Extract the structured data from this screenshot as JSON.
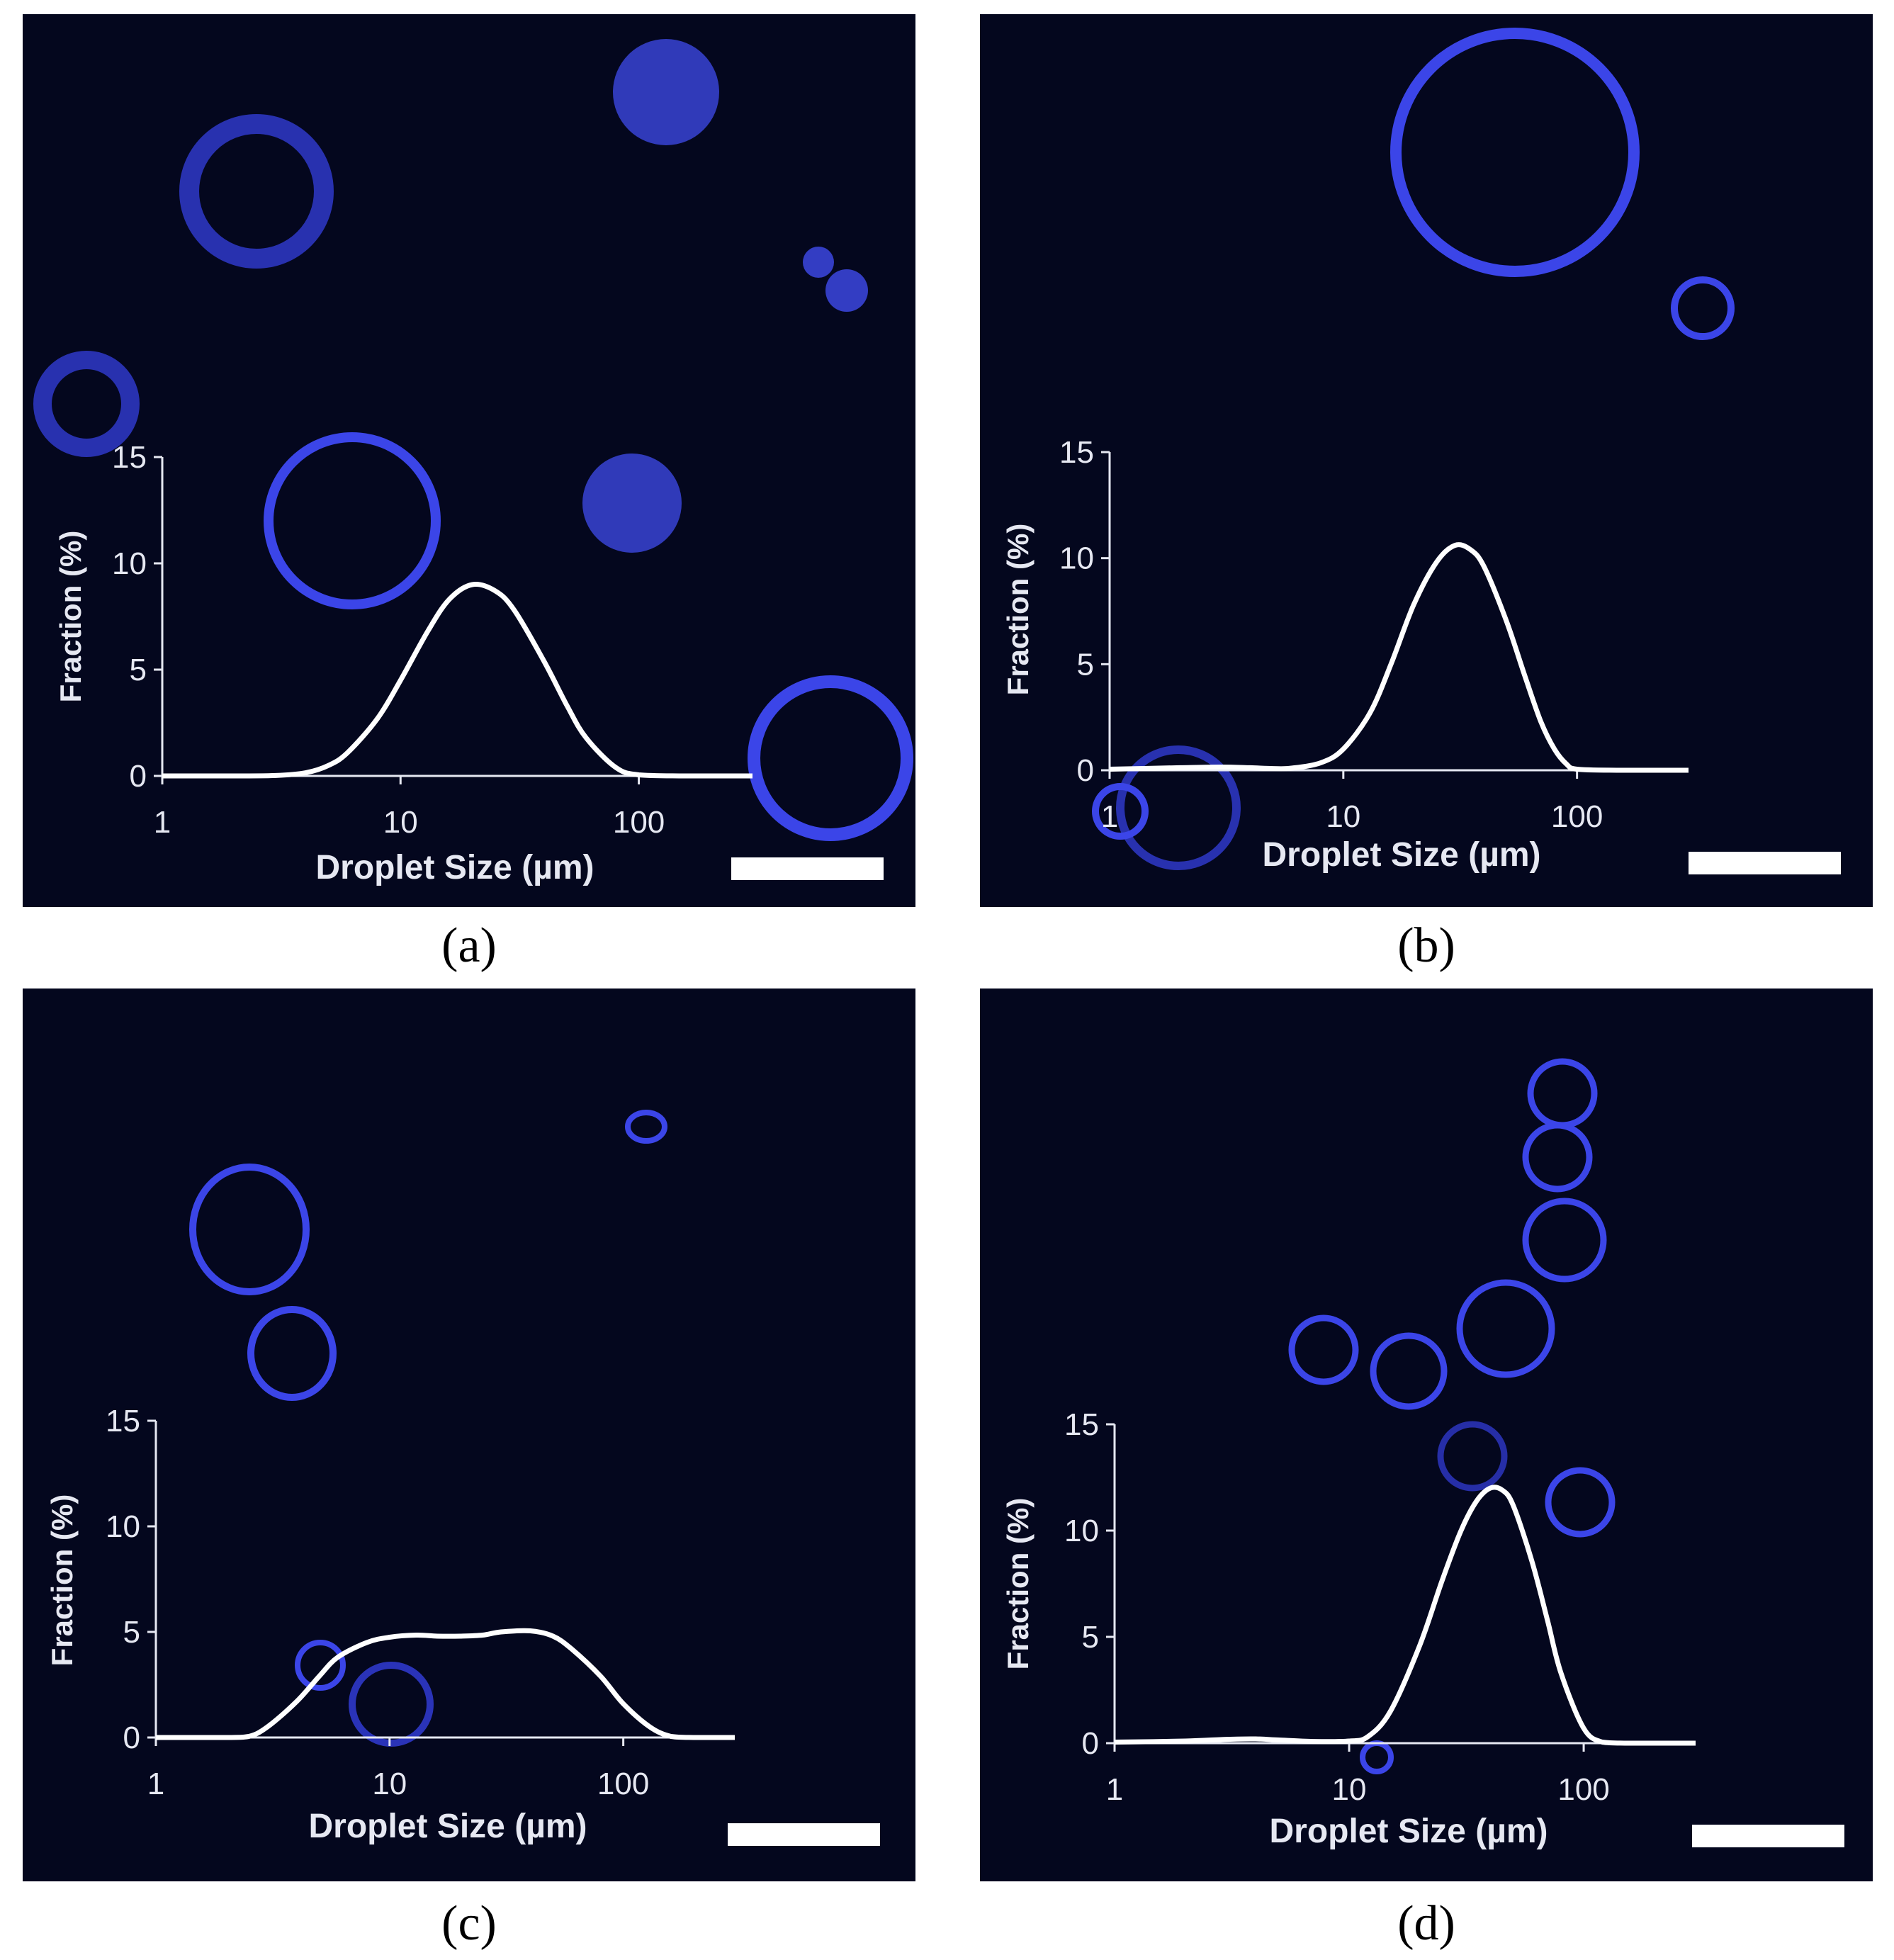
{
  "figure": {
    "captions": [
      "(a)",
      "(b)",
      "(c)",
      "(d)"
    ],
    "scale_bar_color": "#ffffff",
    "background_color": "#04071e",
    "droplet_color": "#3b45e8",
    "curve_color": "#ffffff"
  },
  "chart_data": [
    {
      "panel": "a",
      "type": "line",
      "xlabel": "Droplet Size (µm)",
      "ylabel": "Fraction (%)",
      "x_scale": "log",
      "xlim": [
        1,
        300
      ],
      "ylim": [
        0,
        15
      ],
      "x_ticks": [
        "1",
        "10",
        "100"
      ],
      "y_ticks": [
        "0",
        "5",
        "10",
        "15"
      ],
      "grid": false,
      "series": [
        {
          "x": [
            1,
            2,
            3,
            4,
            5,
            6,
            8,
            10,
            13,
            16,
            20,
            25,
            30,
            40,
            50,
            60,
            80,
            100,
            150,
            200,
            300
          ],
          "values": [
            0,
            0,
            0.02,
            0.15,
            0.5,
            1.1,
            2.7,
            4.5,
            6.8,
            8.3,
            9.0,
            8.7,
            7.8,
            5.4,
            3.3,
            1.8,
            0.4,
            0.05,
            0,
            0,
            0
          ]
        }
      ]
    },
    {
      "panel": "b",
      "type": "line",
      "xlabel": "Droplet Size (µm)",
      "ylabel": "Fraction (%)",
      "x_scale": "log",
      "xlim": [
        1,
        300
      ],
      "ylim": [
        0,
        15
      ],
      "x_ticks": [
        "1",
        "10",
        "100"
      ],
      "y_ticks": [
        "0",
        "5",
        "10",
        "15"
      ],
      "grid": false,
      "series": [
        {
          "x": [
            1,
            2,
            3,
            4,
            5,
            6,
            8,
            10,
            13,
            16,
            20,
            25,
            30,
            35,
            40,
            50,
            60,
            70,
            80,
            90,
            100,
            150,
            200,
            300
          ],
          "values": [
            0.05,
            0.12,
            0.15,
            0.12,
            0.08,
            0.1,
            0.35,
            1.0,
            2.7,
            5.0,
            7.8,
            9.8,
            10.6,
            10.4,
            9.6,
            7.0,
            4.4,
            2.3,
            1.0,
            0.3,
            0.05,
            0,
            0,
            0
          ]
        }
      ]
    },
    {
      "panel": "c",
      "type": "line",
      "xlabel": "Droplet Size (µm)",
      "ylabel": "Fraction (%)",
      "x_scale": "log",
      "xlim": [
        1,
        300
      ],
      "ylim": [
        0,
        15
      ],
      "x_ticks": [
        "1",
        "10",
        "100"
      ],
      "y_ticks": [
        "0",
        "5",
        "10",
        "15"
      ],
      "grid": false,
      "series": [
        {
          "x": [
            1,
            2,
            2.5,
            3,
            4,
            5,
            6,
            8,
            10,
            13,
            16,
            20,
            25,
            30,
            40,
            50,
            60,
            80,
            100,
            130,
            160,
            200,
            300
          ],
          "values": [
            0,
            0,
            0.05,
            0.5,
            1.7,
            2.9,
            3.8,
            4.5,
            4.75,
            4.85,
            4.8,
            4.8,
            4.85,
            5.0,
            5.05,
            4.8,
            4.2,
            2.9,
            1.6,
            0.5,
            0.05,
            0,
            0
          ]
        }
      ]
    },
    {
      "panel": "d",
      "type": "line",
      "xlabel": "Droplet Size (µm)",
      "ylabel": "Fraction (%)",
      "x_scale": "log",
      "xlim": [
        1,
        300
      ],
      "ylim": [
        0,
        15
      ],
      "x_ticks": [
        "1",
        "10",
        "100"
      ],
      "y_ticks": [
        "0",
        "5",
        "10",
        "15"
      ],
      "grid": false,
      "series": [
        {
          "x": [
            1,
            2,
            3,
            4,
            5,
            7,
            10,
            12,
            15,
            20,
            25,
            30,
            35,
            40,
            45,
            50,
            60,
            70,
            80,
            100,
            120,
            150,
            200,
            300
          ],
          "values": [
            0.05,
            0.1,
            0.18,
            0.2,
            0.15,
            0.08,
            0.1,
            0.3,
            1.5,
            4.6,
            7.7,
            10.0,
            11.4,
            12.0,
            11.9,
            11.2,
            8.6,
            5.8,
            3.3,
            0.7,
            0.05,
            0,
            0,
            0
          ]
        }
      ]
    }
  ]
}
